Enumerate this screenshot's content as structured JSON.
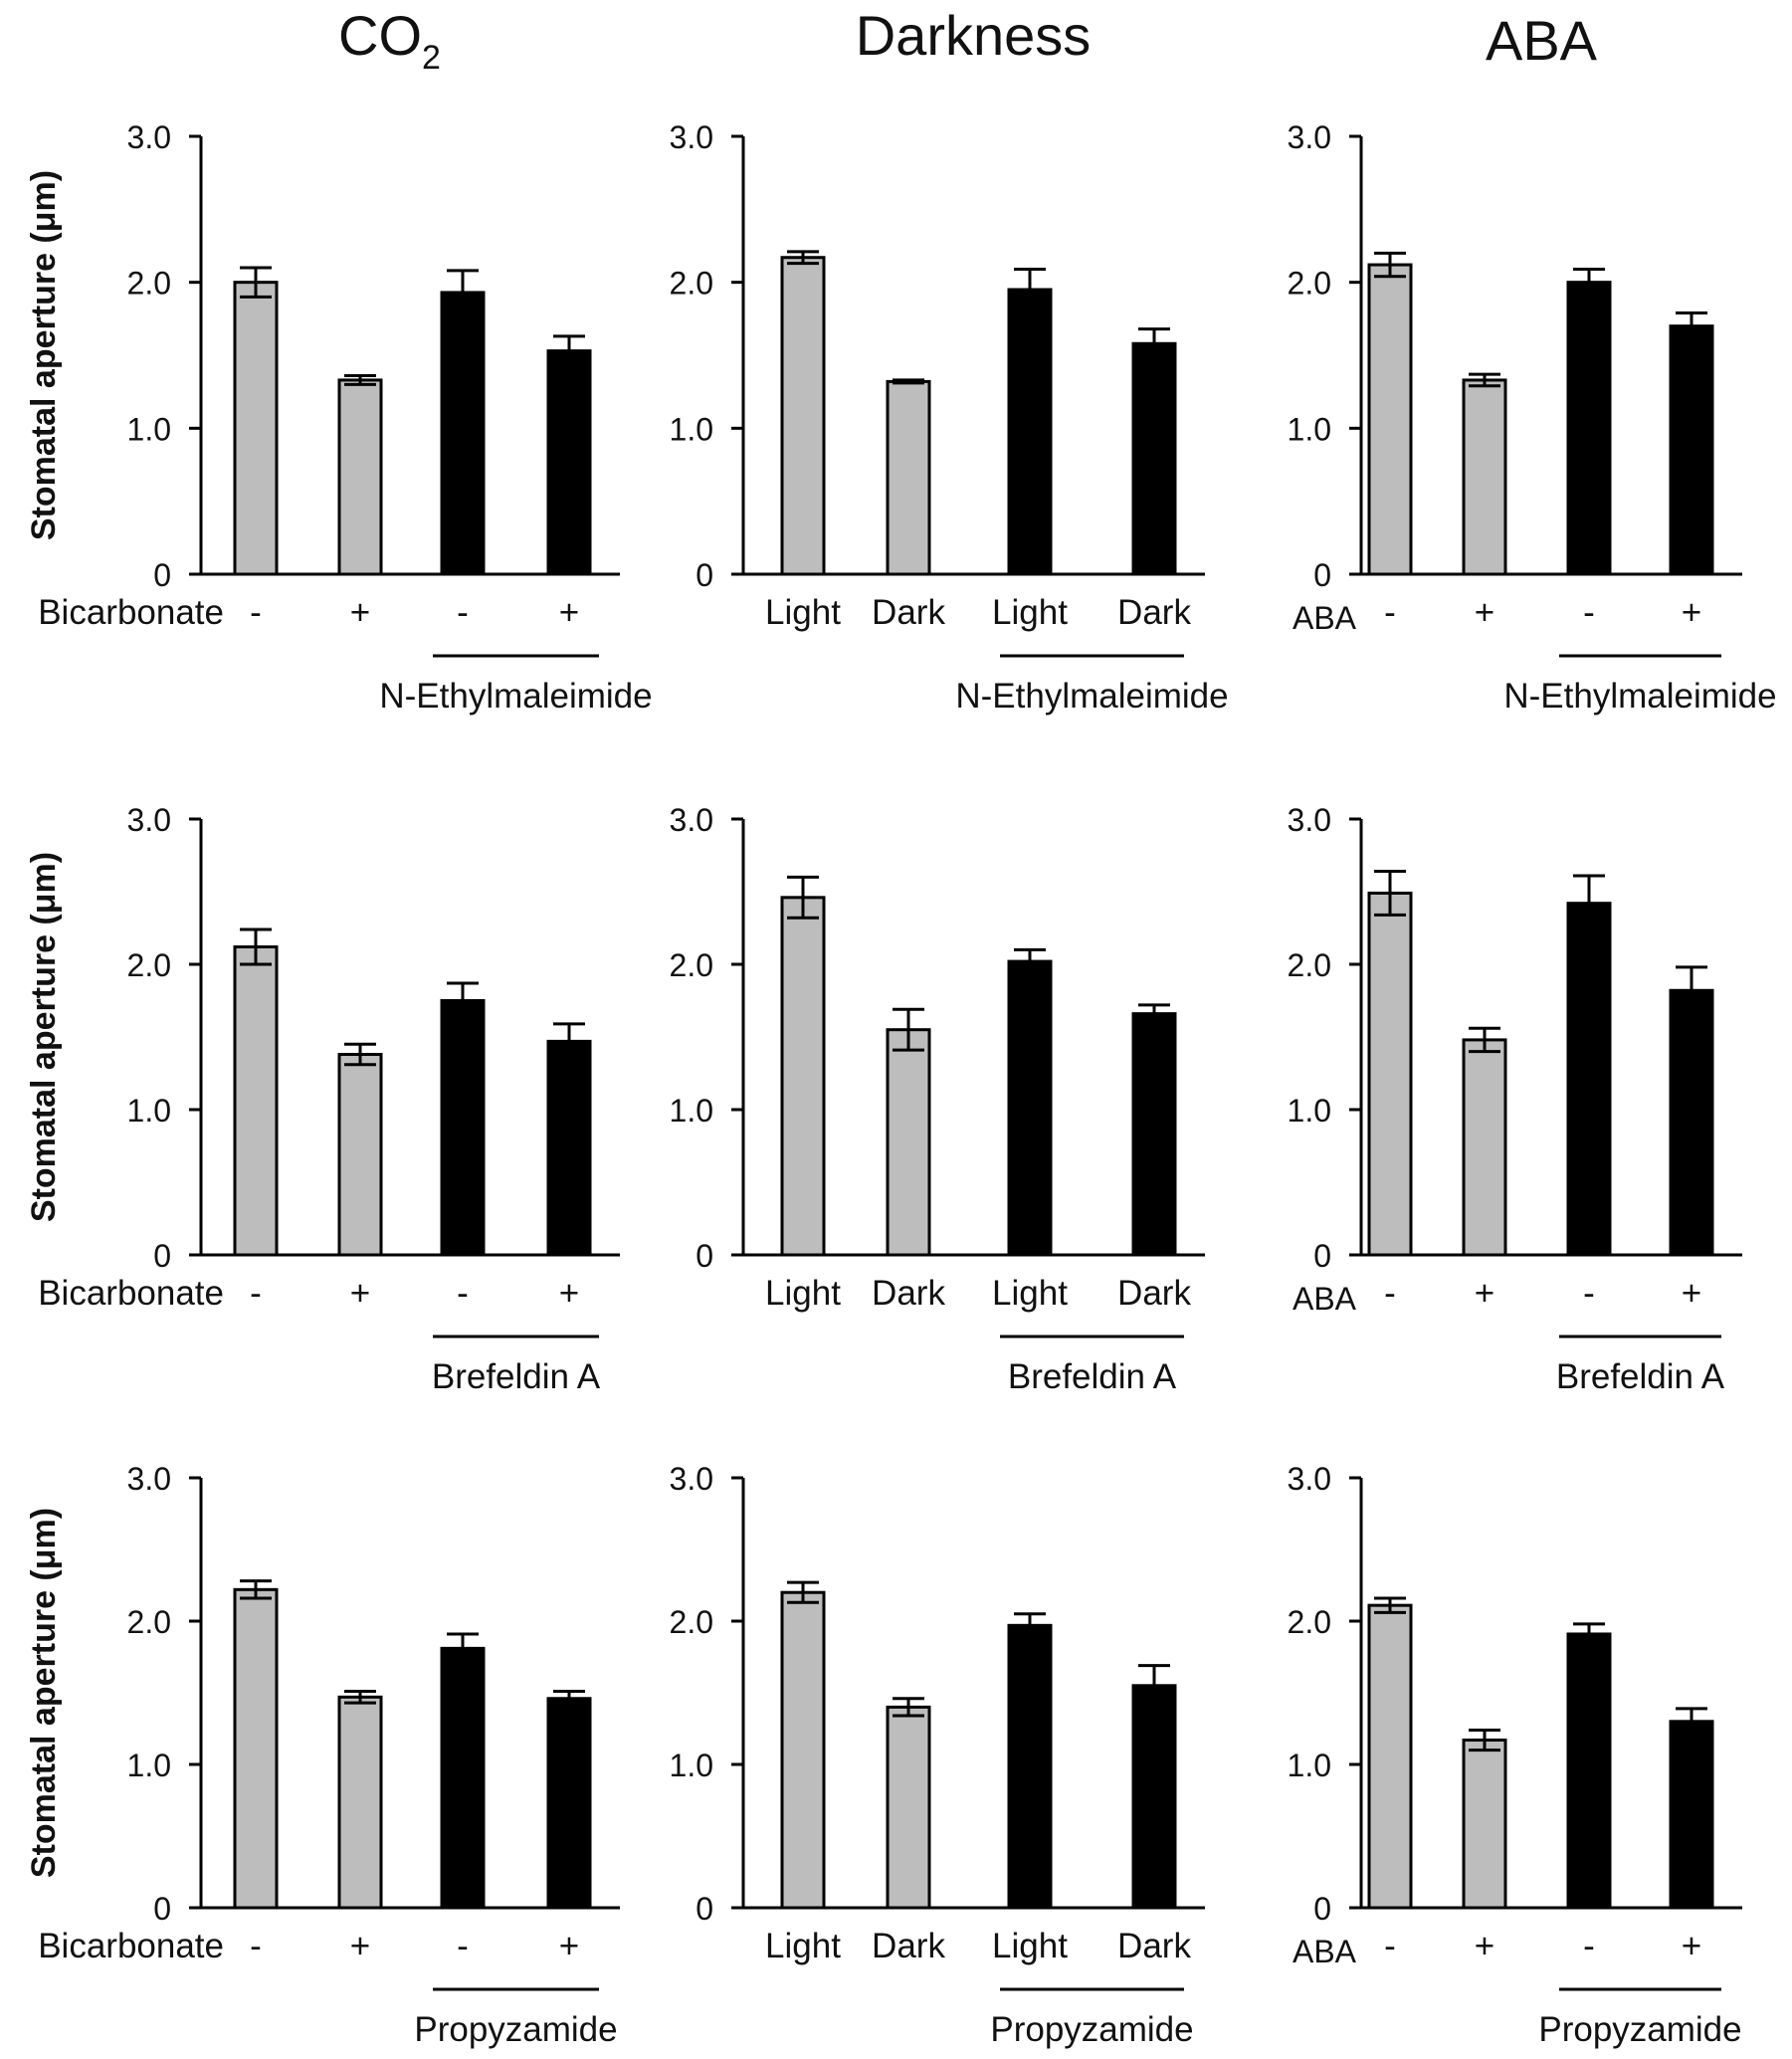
{
  "colors": {
    "control": "#bdbdbd",
    "treated": "#000000",
    "axis": "#000000",
    "background": "#ffffff"
  },
  "column_titles": [
    {
      "main": "CO",
      "sub": "2"
    },
    {
      "main": "Darkness",
      "sub": ""
    },
    {
      "main": "ABA",
      "sub": ""
    }
  ],
  "chart_data": [
    {
      "type": "bar",
      "row": 0,
      "col": 0,
      "ylabel": "Stomatal aperture (μm)",
      "ylim": [
        0,
        3.0
      ],
      "yticks": [
        "0",
        "1.0",
        "2.0",
        "3.0"
      ],
      "row_label": "Bicarbonate",
      "categories": [
        "-",
        "+",
        "-",
        "+"
      ],
      "values": [
        2.0,
        1.33,
        1.93,
        1.53
      ],
      "errors": [
        0.1,
        0.03,
        0.15,
        0.1
      ],
      "series_of_bar": [
        "control",
        "control",
        "treated",
        "treated"
      ],
      "group_label": "N-Ethylmaleimide"
    },
    {
      "type": "bar",
      "row": 0,
      "col": 1,
      "ylabel": "",
      "ylim": [
        0,
        3.0
      ],
      "yticks": [
        "0",
        "1.0",
        "2.0",
        "3.0"
      ],
      "row_label": "",
      "categories": [
        "Light",
        "Dark",
        "Light",
        "Dark"
      ],
      "values": [
        2.17,
        1.32,
        1.95,
        1.58
      ],
      "errors": [
        0.04,
        0.01,
        0.14,
        0.1
      ],
      "series_of_bar": [
        "control",
        "control",
        "treated",
        "treated"
      ],
      "group_label": "N-Ethylmaleimide"
    },
    {
      "type": "bar",
      "row": 0,
      "col": 2,
      "ylabel": "",
      "ylim": [
        0,
        3.0
      ],
      "yticks": [
        "0",
        "1.0",
        "2.0",
        "3.0"
      ],
      "row_label": "ABA",
      "categories": [
        "-",
        "+",
        "-",
        "+"
      ],
      "values": [
        2.12,
        1.33,
        2.0,
        1.7
      ],
      "errors": [
        0.08,
        0.04,
        0.09,
        0.09
      ],
      "series_of_bar": [
        "control",
        "control",
        "treated",
        "treated"
      ],
      "group_label": "N-Ethylmaleimide"
    },
    {
      "type": "bar",
      "row": 1,
      "col": 0,
      "ylabel": "Stomatal aperture (μm)",
      "ylim": [
        0,
        3.0
      ],
      "yticks": [
        "0",
        "1.0",
        "2.0",
        "3.0"
      ],
      "row_label": "Bicarbonate",
      "categories": [
        "-",
        "+",
        "-",
        "+"
      ],
      "values": [
        2.12,
        1.38,
        1.75,
        1.47
      ],
      "errors": [
        0.12,
        0.07,
        0.12,
        0.12
      ],
      "series_of_bar": [
        "control",
        "control",
        "treated",
        "treated"
      ],
      "group_label": "Brefeldin A"
    },
    {
      "type": "bar",
      "row": 1,
      "col": 1,
      "ylabel": "",
      "ylim": [
        0,
        3.0
      ],
      "yticks": [
        "0",
        "1.0",
        "2.0",
        "3.0"
      ],
      "row_label": "",
      "categories": [
        "Light",
        "Dark",
        "Light",
        "Dark"
      ],
      "values": [
        2.46,
        1.55,
        2.02,
        1.66
      ],
      "errors": [
        0.14,
        0.14,
        0.08,
        0.06
      ],
      "series_of_bar": [
        "control",
        "control",
        "treated",
        "treated"
      ],
      "group_label": "Brefeldin A"
    },
    {
      "type": "bar",
      "row": 1,
      "col": 2,
      "ylabel": "",
      "ylim": [
        0,
        3.0
      ],
      "yticks": [
        "0",
        "1.0",
        "2.0",
        "3.0"
      ],
      "row_label": "ABA",
      "categories": [
        "-",
        "+",
        "-",
        "+"
      ],
      "values": [
        2.49,
        1.48,
        2.42,
        1.82
      ],
      "errors": [
        0.15,
        0.08,
        0.19,
        0.16
      ],
      "series_of_bar": [
        "control",
        "control",
        "treated",
        "treated"
      ],
      "group_label": "Brefeldin A"
    },
    {
      "type": "bar",
      "row": 2,
      "col": 0,
      "ylabel": "Stomatal aperture (μm)",
      "ylim": [
        0,
        3.0
      ],
      "yticks": [
        "0",
        "1.0",
        "2.0",
        "3.0"
      ],
      "row_label": "Bicarbonate",
      "categories": [
        "-",
        "+",
        "-",
        "+"
      ],
      "values": [
        2.22,
        1.47,
        1.81,
        1.46
      ],
      "errors": [
        0.06,
        0.04,
        0.1,
        0.05
      ],
      "series_of_bar": [
        "control",
        "control",
        "treated",
        "treated"
      ],
      "group_label": "Propyzamide"
    },
    {
      "type": "bar",
      "row": 2,
      "col": 1,
      "ylabel": "",
      "ylim": [
        0,
        3.0
      ],
      "yticks": [
        "0",
        "1.0",
        "2.0",
        "3.0"
      ],
      "row_label": "",
      "categories": [
        "Light",
        "Dark",
        "Light",
        "Dark"
      ],
      "values": [
        2.2,
        1.4,
        1.97,
        1.55
      ],
      "errors": [
        0.07,
        0.06,
        0.08,
        0.14
      ],
      "series_of_bar": [
        "control",
        "control",
        "treated",
        "treated"
      ],
      "group_label": "Propyzamide"
    },
    {
      "type": "bar",
      "row": 2,
      "col": 2,
      "ylabel": "",
      "ylim": [
        0,
        3.0
      ],
      "yticks": [
        "0",
        "1.0",
        "2.0",
        "3.0"
      ],
      "row_label": "ABA",
      "categories": [
        "-",
        "+",
        "-",
        "+"
      ],
      "values": [
        2.11,
        1.17,
        1.91,
        1.3
      ],
      "errors": [
        0.05,
        0.07,
        0.07,
        0.09
      ],
      "series_of_bar": [
        "control",
        "control",
        "treated",
        "treated"
      ],
      "group_label": "Propyzamide"
    }
  ]
}
